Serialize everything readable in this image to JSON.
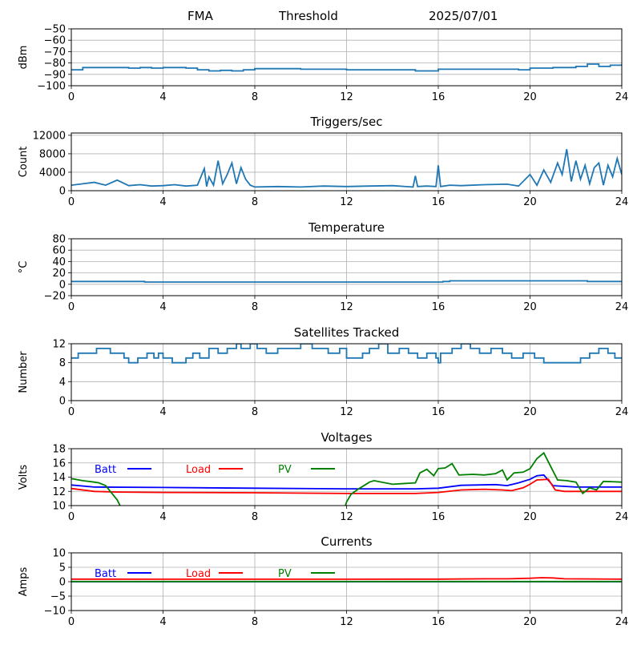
{
  "header": {
    "station": "FMA",
    "label": "Threshold",
    "date": "2025/07/01"
  },
  "legend_labels": {
    "batt": "Batt",
    "load": "Load",
    "pv": "PV"
  },
  "colors": {
    "series": "#1f77b4",
    "batt": "#0000ff",
    "load": "#ff0000",
    "pv": "#008000",
    "grid": "#b0b0b0"
  },
  "chart_data": [
    {
      "id": "threshold",
      "type": "line",
      "title": "",
      "ylabel": "dBm",
      "xlim": [
        0,
        24
      ],
      "xticks": [
        0,
        4,
        8,
        12,
        16,
        20,
        24
      ],
      "ylim": [
        -100,
        -50
      ],
      "yticks": [
        -100,
        -90,
        -80,
        -70,
        -60,
        -50
      ],
      "grid": true,
      "series": [
        {
          "key": "series",
          "shape": "step",
          "x": [
            0,
            0.5,
            2.5,
            3,
            3.5,
            4,
            5,
            5.5,
            6,
            6.5,
            7,
            7.5,
            8,
            10,
            12,
            14,
            15,
            16,
            18,
            19.5,
            20,
            21,
            22,
            22.5,
            23,
            23.5,
            24
          ],
          "y": [
            -86,
            -84,
            -84.5,
            -84,
            -84.5,
            -84,
            -84.5,
            -86,
            -87,
            -86.5,
            -87,
            -86,
            -85,
            -85.5,
            -86,
            -86,
            -87,
            -85.5,
            -85.5,
            -86,
            -84.5,
            -84,
            -83,
            -81,
            -83,
            -82,
            -81
          ]
        }
      ]
    },
    {
      "id": "triggers",
      "type": "line",
      "title": "Triggers/sec",
      "ylabel": "Count",
      "xlim": [
        0,
        24
      ],
      "xticks": [
        0,
        4,
        8,
        12,
        16,
        20,
        24
      ],
      "ylim": [
        0,
        12500
      ],
      "yticks": [
        0,
        4000,
        8000,
        12000
      ],
      "grid": true,
      "series": [
        {
          "key": "series",
          "shape": "line",
          "x": [
            0,
            0.5,
            1,
            1.5,
            2,
            2.5,
            3,
            3.5,
            4,
            4.5,
            5,
            5.5,
            5.8,
            5.9,
            6,
            6.2,
            6.4,
            6.6,
            6.8,
            7,
            7.2,
            7.4,
            7.6,
            7.8,
            8,
            9,
            10,
            11,
            12,
            13,
            14,
            14.9,
            15,
            15.1,
            15.5,
            15.9,
            16,
            16.1,
            16.5,
            17,
            18,
            19,
            19.5,
            20,
            20.3,
            20.6,
            20.9,
            21.2,
            21.4,
            21.6,
            21.8,
            22,
            22.2,
            22.4,
            22.6,
            22.8,
            23,
            23.2,
            23.4,
            23.6,
            23.8,
            24
          ],
          "y": [
            1200,
            1500,
            1800,
            1200,
            2300,
            1100,
            1300,
            1000,
            1100,
            1300,
            1000,
            1200,
            4800,
            900,
            3000,
            1200,
            6500,
            1500,
            3500,
            6000,
            1500,
            5000,
            2500,
            1200,
            800,
            900,
            800,
            1000,
            900,
            1000,
            1100,
            800,
            3200,
            900,
            1000,
            900,
            5500,
            900,
            1200,
            1100,
            1300,
            1400,
            1000,
            3500,
            1200,
            4500,
            1800,
            6000,
            3500,
            9000,
            2000,
            6500,
            2500,
            5500,
            1500,
            5000,
            6000,
            1200,
            5500,
            3000,
            7000,
            3500
          ]
        }
      ]
    },
    {
      "id": "temperature",
      "type": "line",
      "title": "Temperature",
      "ylabel": "°C",
      "xlim": [
        0,
        24
      ],
      "xticks": [
        0,
        4,
        8,
        12,
        16,
        20,
        24
      ],
      "ylim": [
        -20,
        80
      ],
      "yticks": [
        -20,
        0,
        20,
        40,
        60,
        80
      ],
      "grid": true,
      "series": [
        {
          "key": "series",
          "shape": "step",
          "x": [
            0,
            3.2,
            14,
            16.2,
            16.5,
            22.5,
            24
          ],
          "y": [
            5,
            4,
            4,
            5,
            6,
            5,
            5
          ]
        }
      ]
    },
    {
      "id": "satellites",
      "type": "line",
      "title": "Satellites Tracked",
      "ylabel": "Number",
      "xlim": [
        0,
        24
      ],
      "xticks": [
        0,
        4,
        8,
        12,
        16,
        20,
        24
      ],
      "ylim": [
        0,
        12
      ],
      "yticks": [
        0,
        4,
        8,
        12
      ],
      "grid": true,
      "series": [
        {
          "key": "series",
          "shape": "step",
          "x": [
            0,
            0.3,
            0.5,
            1.1,
            1.7,
            2.3,
            2.5,
            2.9,
            3.3,
            3.6,
            3.8,
            4,
            4.4,
            5,
            5.3,
            5.6,
            6,
            6.4,
            6.8,
            7.2,
            7.4,
            7.8,
            8.1,
            8.5,
            9,
            9.5,
            10,
            10.5,
            11.2,
            11.7,
            12,
            12.7,
            13,
            13.4,
            13.8,
            14.3,
            14.7,
            15.1,
            15.5,
            15.9,
            16,
            16.1,
            16.6,
            17,
            17.4,
            17.8,
            18.3,
            18.8,
            19.2,
            19.7,
            20.2,
            20.6,
            21.2,
            22.2,
            22.6,
            23,
            23.4,
            23.7,
            24
          ],
          "y": [
            9,
            10,
            10,
            11,
            10,
            9,
            8,
            9,
            10,
            9,
            10,
            9,
            8,
            9,
            10,
            9,
            11,
            10,
            11,
            12,
            11,
            12,
            11,
            10,
            11,
            11,
            12,
            11,
            10,
            11,
            9,
            10,
            11,
            12,
            10,
            11,
            10,
            9,
            10,
            9,
            8,
            10,
            11,
            12,
            11,
            10,
            11,
            10,
            9,
            10,
            9,
            8,
            8,
            9,
            10,
            11,
            10,
            9,
            9
          ]
        }
      ]
    },
    {
      "id": "voltages",
      "type": "line",
      "title": "Voltages",
      "ylabel": "Volts",
      "xlim": [
        0,
        24
      ],
      "xticks": [
        0,
        4,
        8,
        12,
        16,
        20,
        24
      ],
      "ylim": [
        10,
        18
      ],
      "yticks": [
        10,
        12,
        14,
        16,
        18
      ],
      "grid": true,
      "series": [
        {
          "key": "batt",
          "legend": "batt",
          "shape": "line",
          "x": [
            0,
            1,
            4,
            8,
            12,
            15,
            16,
            17,
            18.5,
            19,
            19.5,
            20,
            20.3,
            20.6,
            21,
            21.5,
            22,
            24
          ],
          "y": [
            12.9,
            12.6,
            12.55,
            12.45,
            12.35,
            12.35,
            12.45,
            12.85,
            12.95,
            12.8,
            13.2,
            13.7,
            14.2,
            14.3,
            12.8,
            12.7,
            12.6,
            12.6
          ]
        },
        {
          "key": "load",
          "legend": "load",
          "shape": "line",
          "x": [
            0,
            1,
            2,
            4,
            8,
            12,
            15,
            16,
            17,
            18,
            18.8,
            19.2,
            19.7,
            20,
            20.3,
            20.8,
            21.1,
            21.5,
            24
          ],
          "y": [
            12.4,
            12.0,
            11.9,
            11.85,
            11.8,
            11.7,
            11.7,
            11.85,
            12.2,
            12.3,
            12.2,
            12.1,
            12.5,
            13.0,
            13.6,
            13.7,
            12.2,
            12.0,
            12.0
          ]
        },
        {
          "key": "pv",
          "legend": "pv",
          "shape": "line",
          "x": [
            0,
            0.5,
            1,
            1.2,
            1.5,
            1.7,
            2,
            2.2,
            11.9,
            12,
            12.2,
            12.5,
            12.8,
            13,
            13.2,
            14,
            15,
            15.2,
            15.5,
            15.8,
            16,
            16.3,
            16.6,
            16.9,
            17.5,
            18,
            18.5,
            18.8,
            19,
            19.3,
            19.7,
            20,
            20.3,
            20.6,
            20.9,
            21.2,
            21.6,
            22,
            22.3,
            22.6,
            22.9,
            23.2,
            24
          ],
          "y": [
            13.8,
            13.5,
            13.3,
            13.2,
            12.8,
            12.0,
            10.8,
            9.5,
            9.5,
            10.5,
            11.6,
            12.3,
            12.9,
            13.3,
            13.5,
            13.0,
            13.2,
            14.6,
            15.1,
            14.2,
            15.2,
            15.3,
            15.9,
            14.3,
            14.4,
            14.3,
            14.5,
            15.0,
            13.6,
            14.6,
            14.7,
            15.2,
            16.6,
            17.4,
            15.5,
            13.6,
            13.5,
            13.3,
            11.7,
            12.5,
            12.2,
            13.4,
            13.3
          ]
        }
      ],
      "legend": [
        "batt",
        "load",
        "pv"
      ]
    },
    {
      "id": "currents",
      "type": "line",
      "title": "Currents",
      "ylabel": "Amps",
      "xlim": [
        0,
        24
      ],
      "xticks": [
        0,
        4,
        8,
        12,
        16,
        20,
        24
      ],
      "ylim": [
        -10,
        10
      ],
      "yticks": [
        -10,
        -5,
        0,
        5,
        10
      ],
      "grid": true,
      "series": [
        {
          "key": "batt",
          "legend": "batt",
          "shape": "line",
          "x": [
            0,
            24
          ],
          "y": [
            0,
            0
          ]
        },
        {
          "key": "load",
          "legend": "load",
          "shape": "line",
          "x": [
            0,
            4,
            8,
            12,
            16,
            18,
            19,
            20,
            20.5,
            21,
            21.5,
            24
          ],
          "y": [
            0.9,
            0.85,
            0.85,
            0.85,
            0.9,
            1.0,
            1.0,
            1.2,
            1.4,
            1.3,
            1.0,
            0.9
          ]
        },
        {
          "key": "pv",
          "legend": "pv",
          "shape": "line",
          "x": [
            0,
            24
          ],
          "y": [
            0.05,
            0.05
          ]
        }
      ],
      "legend": [
        "batt",
        "load",
        "pv"
      ]
    }
  ]
}
